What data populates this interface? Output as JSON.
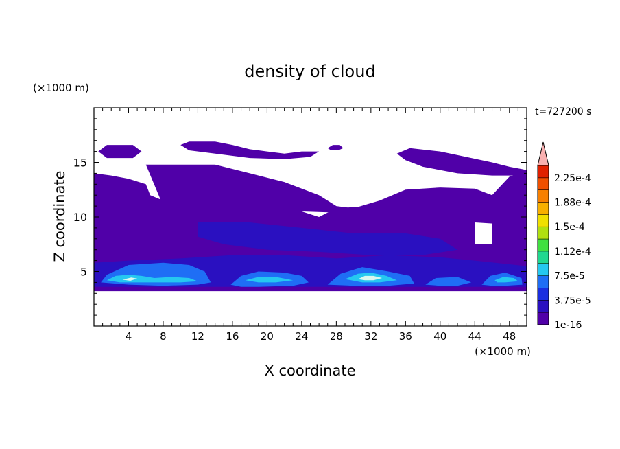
{
  "chart_data": {
    "type": "heatmap",
    "title": "density of cloud",
    "xlabel": "X coordinate",
    "ylabel": "Z coordinate",
    "x_unit": "(×1000 m)",
    "y_unit": "(×1000 m)",
    "time_label": "t=727200 s",
    "xlim": [
      0,
      50
    ],
    "ylim": [
      0,
      20
    ],
    "xticks": [
      4,
      8,
      12,
      16,
      20,
      24,
      28,
      32,
      36,
      40,
      44,
      48
    ],
    "yticks": [
      5,
      10,
      15
    ],
    "colorbar": {
      "levels": [
        "1e-16",
        "3.75e-5",
        "7.5e-5",
        "1.12e-4",
        "1.5e-4",
        "1.88e-4",
        "2.25e-4"
      ],
      "colors": [
        "#5000a8",
        "#2a10c0",
        "#1a2ee0",
        "#1f6ef5",
        "#25c8f0",
        "#20d890",
        "#40e040",
        "#b0e010",
        "#f0e000",
        "#f8b000",
        "#f88000",
        "#f05000",
        "#e02000",
        "#f8b0b0"
      ]
    },
    "regions": [
      {
        "name": "cloud-base-layer",
        "level": 0,
        "poly": [
          [
            0,
            3.2
          ],
          [
            50,
            3.2
          ],
          [
            50,
            9.5
          ],
          [
            46,
            9.5
          ],
          [
            46,
            7.5
          ],
          [
            44,
            7.5
          ],
          [
            44,
            9.5
          ],
          [
            38,
            10.5
          ],
          [
            32,
            11
          ],
          [
            28,
            10.8
          ],
          [
            26,
            10
          ],
          [
            24,
            10.5
          ],
          [
            20,
            12
          ],
          [
            12,
            12.5
          ],
          [
            8,
            11.5
          ],
          [
            4,
            10.5
          ],
          [
            0,
            11.5
          ]
        ]
      },
      {
        "name": "upper-layer-left",
        "level": 0,
        "poly": [
          [
            0,
            14
          ],
          [
            2,
            13.8
          ],
          [
            4,
            13.5
          ],
          [
            6,
            13
          ],
          [
            6.5,
            12
          ],
          [
            8,
            11.5
          ],
          [
            6,
            10.5
          ],
          [
            0,
            10.2
          ]
        ]
      },
      {
        "name": "upper-layer-mid",
        "level": 0,
        "poly": [
          [
            6,
            14.8
          ],
          [
            14,
            14.8
          ],
          [
            18,
            14
          ],
          [
            22,
            13.2
          ],
          [
            26,
            12
          ],
          [
            28,
            11
          ],
          [
            30,
            10.8
          ],
          [
            33,
            11.5
          ],
          [
            36,
            12.5
          ],
          [
            40,
            12.7
          ],
          [
            44,
            12.6
          ],
          [
            46,
            12
          ],
          [
            48,
            13.7
          ],
          [
            50,
            14.2
          ],
          [
            50,
            9.2
          ],
          [
            44,
            9.5
          ],
          [
            40,
            10
          ],
          [
            36,
            10.2
          ],
          [
            32,
            10.4
          ],
          [
            28,
            10.4
          ],
          [
            24,
            10.5
          ],
          [
            20,
            10.8
          ],
          [
            14,
            11
          ],
          [
            8,
            11
          ]
        ]
      },
      {
        "name": "top-patch-1",
        "level": 0,
        "poly": [
          [
            0.5,
            16
          ],
          [
            1.5,
            16.6
          ],
          [
            4.5,
            16.6
          ],
          [
            5.5,
            16
          ],
          [
            4.5,
            15.4
          ],
          [
            1.5,
            15.4
          ]
        ]
      },
      {
        "name": "top-patch-2",
        "level": 0,
        "poly": [
          [
            10,
            16.6
          ],
          [
            11,
            16.9
          ],
          [
            14,
            16.9
          ],
          [
            16,
            16.6
          ],
          [
            18,
            16.2
          ],
          [
            20,
            16
          ],
          [
            22,
            15.8
          ],
          [
            24,
            16
          ],
          [
            26,
            16
          ],
          [
            25,
            15.5
          ],
          [
            22,
            15.3
          ],
          [
            18,
            15.4
          ],
          [
            14,
            15.8
          ],
          [
            11,
            16.1
          ]
        ]
      },
      {
        "name": "top-patch-3",
        "level": 0,
        "poly": [
          [
            27,
            16.3
          ],
          [
            27.6,
            16.6
          ],
          [
            28.4,
            16.6
          ],
          [
            28.8,
            16.3
          ],
          [
            28.2,
            16.1
          ],
          [
            27.4,
            16.1
          ]
        ]
      },
      {
        "name": "top-patch-4",
        "level": 0,
        "poly": [
          [
            35,
            15.8
          ],
          [
            36.5,
            16.3
          ],
          [
            40,
            16
          ],
          [
            43,
            15.5
          ],
          [
            46,
            15
          ],
          [
            48,
            14.6
          ],
          [
            50,
            14.3
          ],
          [
            50,
            13.8
          ],
          [
            46,
            13.8
          ],
          [
            42,
            14
          ],
          [
            38,
            14.6
          ],
          [
            36,
            15.2
          ]
        ]
      },
      {
        "name": "mid-dark-band-1",
        "level": 1,
        "poly": [
          [
            12,
            9.5
          ],
          [
            18,
            9.5
          ],
          [
            24,
            9
          ],
          [
            30,
            8.5
          ],
          [
            36,
            8.5
          ],
          [
            40,
            8
          ],
          [
            42,
            7
          ],
          [
            38,
            6.5
          ],
          [
            32,
            6.5
          ],
          [
            26,
            6.8
          ],
          [
            20,
            7
          ],
          [
            15,
            7.5
          ],
          [
            12,
            8.2
          ]
        ]
      },
      {
        "name": "lower-dark-band",
        "level": 1,
        "poly": [
          [
            0,
            3.6
          ],
          [
            50,
            3.6
          ],
          [
            50,
            5.5
          ],
          [
            44,
            6
          ],
          [
            40,
            6.3
          ],
          [
            34,
            6.5
          ],
          [
            28,
            6.2
          ],
          [
            22,
            6.5
          ],
          [
            16,
            6.5
          ],
          [
            10,
            6.2
          ],
          [
            4,
            6
          ],
          [
            0,
            5.8
          ]
        ]
      },
      {
        "name": "blue-core-1",
        "level": 2,
        "poly": [
          [
            0.8,
            4
          ],
          [
            1.5,
            4.7
          ],
          [
            4,
            5.6
          ],
          [
            8,
            5.8
          ],
          [
            11,
            5.6
          ],
          [
            12.8,
            5
          ],
          [
            13.5,
            4
          ],
          [
            12,
            3.8
          ],
          [
            8,
            3.7
          ],
          [
            4,
            3.8
          ]
        ]
      },
      {
        "name": "blue-core-2",
        "level": 2,
        "poly": [
          [
            15.8,
            3.8
          ],
          [
            17,
            4.6
          ],
          [
            19,
            5
          ],
          [
            22,
            4.9
          ],
          [
            24,
            4.6
          ],
          [
            24.8,
            4
          ],
          [
            23,
            3.7
          ],
          [
            19,
            3.6
          ],
          [
            17,
            3.6
          ]
        ]
      },
      {
        "name": "blue-core-3",
        "level": 2,
        "poly": [
          [
            27,
            3.8
          ],
          [
            28.5,
            4.8
          ],
          [
            31,
            5.4
          ],
          [
            34,
            5
          ],
          [
            36.5,
            4.6
          ],
          [
            37,
            3.9
          ],
          [
            34,
            3.7
          ],
          [
            30,
            3.7
          ]
        ]
      },
      {
        "name": "blue-core-4",
        "level": 2,
        "poly": [
          [
            38.3,
            3.8
          ],
          [
            39.5,
            4.4
          ],
          [
            42,
            4.5
          ],
          [
            43.6,
            4
          ],
          [
            42,
            3.7
          ],
          [
            40,
            3.7
          ]
        ]
      },
      {
        "name": "blue-core-5",
        "level": 2,
        "poly": [
          [
            44.8,
            3.8
          ],
          [
            45.8,
            4.6
          ],
          [
            47.5,
            4.9
          ],
          [
            49.4,
            4.4
          ],
          [
            49.5,
            3.8
          ],
          [
            47.5,
            3.7
          ],
          [
            46,
            3.7
          ]
        ]
      },
      {
        "name": "bright-core-1",
        "level": 3,
        "poly": [
          [
            1.5,
            4.2
          ],
          [
            2.5,
            4.6
          ],
          [
            4,
            4.7
          ],
          [
            5.5,
            4.6
          ],
          [
            7,
            4.4
          ],
          [
            9,
            4.5
          ],
          [
            11,
            4.4
          ],
          [
            12,
            4.1
          ],
          [
            10,
            4
          ],
          [
            6,
            4
          ],
          [
            3,
            4
          ]
        ]
      },
      {
        "name": "bright-core-2",
        "level": 3,
        "poly": [
          [
            17.5,
            4.2
          ],
          [
            19,
            4.5
          ],
          [
            21,
            4.5
          ],
          [
            23,
            4.2
          ],
          [
            21,
            4
          ],
          [
            19,
            4
          ]
        ]
      },
      {
        "name": "bright-core-3",
        "level": 3,
        "poly": [
          [
            29,
            4.3
          ],
          [
            30.5,
            4.8
          ],
          [
            32,
            4.9
          ],
          [
            33.8,
            4.6
          ],
          [
            35,
            4.2
          ],
          [
            33,
            4
          ],
          [
            31,
            4
          ]
        ]
      },
      {
        "name": "bright-core-4",
        "level": 3,
        "poly": [
          [
            46.3,
            4.2
          ],
          [
            47.3,
            4.5
          ],
          [
            48.5,
            4.4
          ],
          [
            49,
            4.1
          ],
          [
            47.5,
            4
          ],
          [
            46.6,
            4
          ]
        ]
      },
      {
        "name": "peak-core-1",
        "level": 4,
        "poly": [
          [
            30.5,
            4.3
          ],
          [
            31.3,
            4.6
          ],
          [
            32.3,
            4.6
          ],
          [
            33.3,
            4.4
          ],
          [
            32.3,
            4.2
          ],
          [
            31.3,
            4.2
          ]
        ]
      },
      {
        "name": "peak-core-2",
        "level": 4,
        "poly": [
          [
            3.3,
            4.25
          ],
          [
            4.3,
            4.45
          ],
          [
            5,
            4.35
          ],
          [
            4.2,
            4.15
          ]
        ]
      }
    ]
  }
}
